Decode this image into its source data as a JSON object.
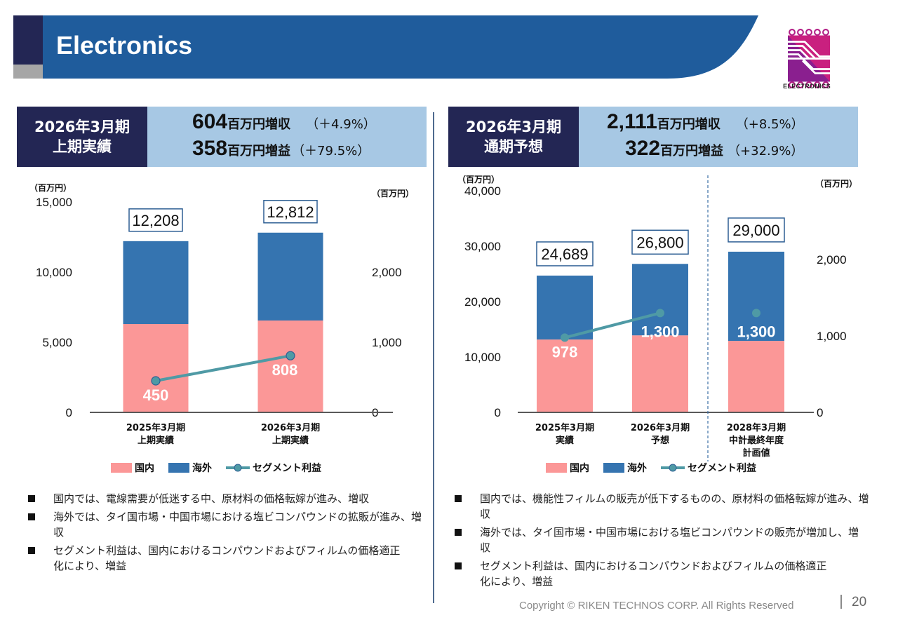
{
  "header": {
    "title": "Electronics",
    "logo_caption": "ELECTRONICS",
    "colors": {
      "band": "#1f5c9c",
      "dark": "#232654",
      "gray": "#a6a6a6"
    }
  },
  "left_summary": {
    "period_line1": "2026年3月期",
    "period_line2": "上期実績",
    "revenue_value": "604",
    "revenue_unit": "百万円増収",
    "revenue_pct": "（＋4.9%）",
    "profit_value": "358",
    "profit_unit": "百万円増益",
    "profit_pct": "（＋79.5%）"
  },
  "right_summary": {
    "period_line1": "2026年3月期",
    "period_line2": "通期予想",
    "revenue_value": "2,111",
    "revenue_unit": "百万円増収",
    "revenue_pct": "（+8.5%）",
    "profit_value": "322",
    "profit_unit": "百万円増益",
    "profit_pct": "（+32.9%）"
  },
  "chart_data": [
    {
      "type": "bar",
      "stacked": true,
      "title": "",
      "categories": [
        [
          "2025年3月期",
          "上期実績"
        ],
        [
          "2026年3月期",
          "上期実績"
        ]
      ],
      "series": [
        {
          "name": "国内",
          "values": [
            6300,
            6550
          ],
          "color": "#fb9797"
        },
        {
          "name": "海外",
          "values": [
            5908,
            6262
          ],
          "color": "#3574b0"
        }
      ],
      "totals": [
        "12,208",
        "12,812"
      ],
      "total_values": [
        12208,
        12812
      ],
      "line_series": {
        "name": "セグメント利益",
        "values": [
          450,
          808
        ],
        "labels": [
          "450",
          "808"
        ],
        "axis": "right",
        "color": "#4f9aa5"
      },
      "ylabel": "（百万円）",
      "y2label": "（百万円）",
      "ylim": [
        0,
        15000
      ],
      "yticks": [
        "0",
        "5,000",
        "10,000",
        "15,000"
      ],
      "y2lim": [
        0,
        3000
      ],
      "y2ticks": [
        "0",
        "1,000",
        "2,000"
      ],
      "legend": [
        "国内",
        "海外",
        "セグメント利益"
      ],
      "legend_position": "bottom"
    },
    {
      "type": "bar",
      "stacked": true,
      "title": "",
      "categories": [
        [
          "2025年3月期",
          "実績"
        ],
        [
          "2026年3月期",
          "予想"
        ],
        [
          "2028年3月期",
          "中計最終年度",
          "計画値"
        ]
      ],
      "series": [
        {
          "name": "国内",
          "values": [
            13150,
            13900,
            12900
          ],
          "color": "#fb9797"
        },
        {
          "name": "海外",
          "values": [
            11539,
            12900,
            16100
          ],
          "color": "#3574b0"
        }
      ],
      "totals": [
        "24,689",
        "26,800",
        "29,000"
      ],
      "total_values": [
        24689,
        26800,
        29000
      ],
      "line_series": {
        "name": "セグメント利益",
        "values": [
          978,
          1300,
          1300
        ],
        "labels": [
          "978",
          "1,300",
          "1,300"
        ],
        "axis": "right",
        "color": "#4f9aa5",
        "connected": [
          true,
          true,
          false
        ]
      },
      "ylabel": "（百万円）",
      "y2label": "（百万円）",
      "ylim": [
        0,
        40000
      ],
      "yticks": [
        "0",
        "10,000",
        "20,000",
        "30,000",
        "40,000"
      ],
      "y2lim": [
        0,
        2900
      ],
      "y2ticks": [
        "0",
        "1,000",
        "2,000"
      ],
      "legend": [
        "国内",
        "海外",
        "セグメント利益"
      ],
      "legend_position": "bottom",
      "separator_before_category": 2
    }
  ],
  "left_bullets": [
    "国内では、電線需要が低迷する中、原材料の価格転嫁が進み、増収",
    "海外では、タイ国市場・中国市場における塩ビコンパウンドの拡販が進み、増収",
    "セグメント利益は、国内におけるコンパウンドおよびフィルムの価格適正化により、増益"
  ],
  "right_bullets": [
    "国内では、機能性フィルムの販売が低下するものの、原材料の価格転嫁が進み、増収",
    "海外では、タイ国市場・中国市場における塩ビコンパウンドの販売が増加し、増収",
    "セグメント利益は、国内におけるコンパウンドおよびフィルムの価格適正化により、増益"
  ],
  "footer": {
    "copyright": "Copyright © RIKEN TECHNOS CORP. All Rights Reserved",
    "page": "20"
  }
}
